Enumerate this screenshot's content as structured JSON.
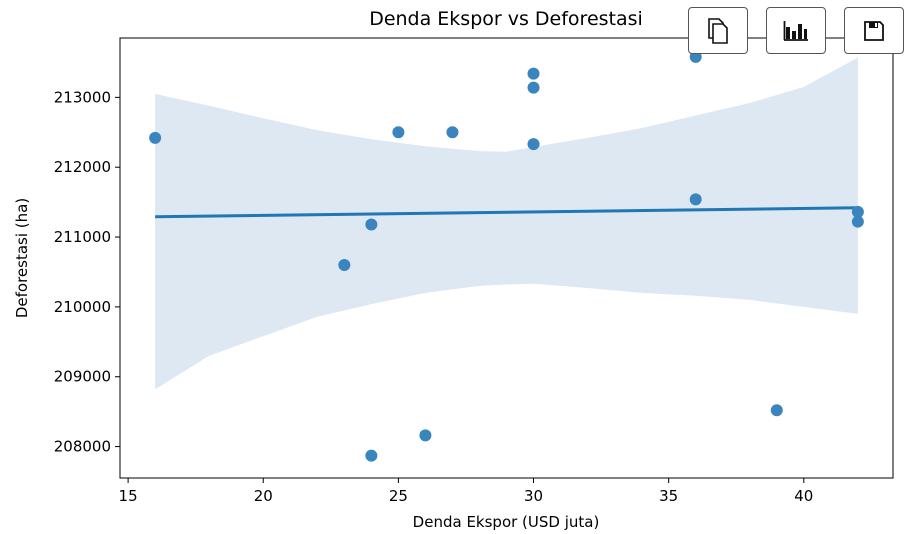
{
  "toolbar": {
    "buttons": [
      {
        "name": "copy",
        "icon": "copy-icon"
      },
      {
        "name": "chart",
        "icon": "bar-chart-icon"
      },
      {
        "name": "save",
        "icon": "save-icon"
      }
    ]
  },
  "chart_data": {
    "type": "scatter",
    "title": "Denda Ekspor vs Deforestasi",
    "xlabel": "Denda Ekspor (USD juta)",
    "ylabel": "Deforestasi (ha)",
    "xlim": [
      14.7,
      43.3
    ],
    "ylim": [
      207550,
      213850
    ],
    "x_ticks": [
      15,
      20,
      25,
      30,
      35,
      40
    ],
    "y_ticks": [
      208000,
      209000,
      210000,
      211000,
      212000,
      213000
    ],
    "grid": false,
    "points": [
      {
        "x": 16,
        "y": 212420
      },
      {
        "x": 23,
        "y": 210600
      },
      {
        "x": 24,
        "y": 211180
      },
      {
        "x": 24,
        "y": 207870
      },
      {
        "x": 25,
        "y": 212500
      },
      {
        "x": 26,
        "y": 208160
      },
      {
        "x": 27,
        "y": 212500
      },
      {
        "x": 30,
        "y": 213340
      },
      {
        "x": 30,
        "y": 213140
      },
      {
        "x": 30,
        "y": 212330
      },
      {
        "x": 36,
        "y": 213580
      },
      {
        "x": 36,
        "y": 211540
      },
      {
        "x": 39,
        "y": 208520
      },
      {
        "x": 42,
        "y": 211360
      },
      {
        "x": 42,
        "y": 211220
      }
    ],
    "regression": {
      "x": [
        16,
        42
      ],
      "y": [
        211290,
        211420
      ]
    },
    "confidence_band": {
      "x": [
        16,
        18,
        20,
        22,
        24,
        26,
        28,
        29,
        30,
        32,
        34,
        36,
        38,
        40,
        42
      ],
      "upper": [
        213050,
        212880,
        212700,
        212530,
        212400,
        212300,
        212230,
        212220,
        212290,
        212420,
        212560,
        212740,
        212920,
        213150,
        213570
      ],
      "lower": [
        208820,
        209300,
        209580,
        209860,
        210040,
        210200,
        210300,
        210320,
        210330,
        210270,
        210200,
        210160,
        210100,
        210000,
        209900
      ]
    },
    "colors": {
      "points": "#3a85bd",
      "line": "#1f77b4",
      "band": "#dde8f3"
    }
  }
}
